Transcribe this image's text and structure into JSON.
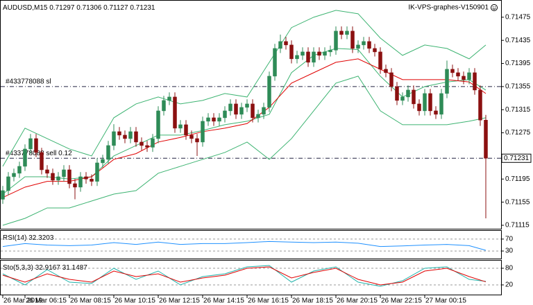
{
  "chart_data": [
    {
      "type": "candlestick",
      "title": "AUDUSD,M15",
      "watermark": "IK-VPS-graphes-V150901",
      "up_color": "#2e8b57",
      "down_color": "#8b1010",
      "ylim": [
        0.71109,
        0.715
      ],
      "yticks": [
        0.71475,
        0.71435,
        0.71395,
        0.71355,
        0.71315,
        0.71275,
        0.71195,
        0.71155,
        0.71115
      ],
      "xticks": [
        {
          "value": 0,
          "label": "26 Mar 2019"
        },
        {
          "value": 4,
          "label": "26 Mar 06:15"
        },
        {
          "value": 12,
          "label": "26 Mar 08:15"
        },
        {
          "value": 20,
          "label": "26 Mar 10:15"
        },
        {
          "value": 28,
          "label": "26 Mar 12:15"
        },
        {
          "value": 36,
          "label": "26 Mar 14:15"
        },
        {
          "value": 44,
          "label": "26 Mar 16:15"
        },
        {
          "value": 52,
          "label": "26 Mar 18:15"
        },
        {
          "value": 60,
          "label": "26 Mar 20:15"
        },
        {
          "value": 68,
          "label": "26 Mar 22:15"
        },
        {
          "value": 76,
          "label": "27 Mar 00:15"
        }
      ],
      "ohlc": [
        [
          0.7116,
          0.71183,
          0.71152,
          0.71175
        ],
        [
          0.71175,
          0.71207,
          0.71167,
          0.71199
        ],
        [
          0.71199,
          0.71213,
          0.71191,
          0.71205
        ],
        [
          0.71205,
          0.71225,
          0.71197,
          0.71217
        ],
        [
          0.71217,
          0.71255,
          0.71209,
          0.71247
        ],
        [
          0.71247,
          0.71273,
          0.71239,
          0.71265
        ],
        [
          0.71265,
          0.71273,
          0.71233,
          0.71241
        ],
        [
          0.71241,
          0.71249,
          0.71203,
          0.71211
        ],
        [
          0.71211,
          0.71219,
          0.71197,
          0.71205
        ],
        [
          0.71205,
          0.71213,
          0.71185,
          0.71193
        ],
        [
          0.71193,
          0.71207,
          0.71185,
          0.71199
        ],
        [
          0.71199,
          0.71219,
          0.71191,
          0.71211
        ],
        [
          0.71211,
          0.71219,
          0.71179,
          0.71187
        ],
        [
          0.71187,
          0.71195,
          0.7116,
          0.71181
        ],
        [
          0.71181,
          0.71207,
          0.71173,
          0.71199
        ],
        [
          0.71199,
          0.71207,
          0.71187,
          0.71195
        ],
        [
          0.71195,
          0.71203,
          0.71183,
          0.71191
        ],
        [
          0.71191,
          0.71231,
          0.71183,
          0.71223
        ],
        [
          0.71223,
          0.71237,
          0.71215,
          0.71229
        ],
        [
          0.71229,
          0.71261,
          0.71221,
          0.71253
        ],
        [
          0.71253,
          0.7129,
          0.71245,
          0.71277
        ],
        [
          0.71277,
          0.71285,
          0.71263,
          0.71271
        ],
        [
          0.71271,
          0.71279,
          0.71257,
          0.71265
        ],
        [
          0.71265,
          0.71285,
          0.71257,
          0.71277
        ],
        [
          0.71277,
          0.71285,
          0.71251,
          0.71259
        ],
        [
          0.71259,
          0.71267,
          0.71245,
          0.71253
        ],
        [
          0.71253,
          0.71261,
          0.71242,
          0.7125
        ],
        [
          0.7125,
          0.71273,
          0.71242,
          0.71265
        ],
        [
          0.71265,
          0.71321,
          0.71257,
          0.71313
        ],
        [
          0.71313,
          0.71339,
          0.71305,
          0.71331
        ],
        [
          0.71331,
          0.71345,
          0.71323,
          0.71337
        ],
        [
          0.71337,
          0.71345,
          0.71275,
          0.71283
        ],
        [
          0.71283,
          0.71297,
          0.71275,
          0.71289
        ],
        [
          0.71289,
          0.71297,
          0.71263,
          0.71271
        ],
        [
          0.71271,
          0.71279,
          0.71257,
          0.71265
        ],
        [
          0.71265,
          0.71273,
          0.71235,
          0.71259
        ],
        [
          0.71259,
          0.71303,
          0.71251,
          0.71295
        ],
        [
          0.71295,
          0.71309,
          0.71287,
          0.71301
        ],
        [
          0.71301,
          0.71309,
          0.71287,
          0.71295
        ],
        [
          0.71295,
          0.71309,
          0.71287,
          0.71301
        ],
        [
          0.71301,
          0.71321,
          0.71293,
          0.71313
        ],
        [
          0.71313,
          0.71333,
          0.71305,
          0.71325
        ],
        [
          0.71325,
          0.71333,
          0.71299,
          0.71307
        ],
        [
          0.71307,
          0.71327,
          0.71299,
          0.71319
        ],
        [
          0.71319,
          0.71333,
          0.71311,
          0.71325
        ],
        [
          0.71325,
          0.71333,
          0.71293,
          0.71301
        ],
        [
          0.71301,
          0.71315,
          0.71293,
          0.71307
        ],
        [
          0.71307,
          0.71327,
          0.71299,
          0.71319
        ],
        [
          0.71319,
          0.71381,
          0.71311,
          0.71373
        ],
        [
          0.71373,
          0.71429,
          0.71365,
          0.71421
        ],
        [
          0.71421,
          0.71445,
          0.71413,
          0.71433
        ],
        [
          0.71433,
          0.71441,
          0.71419,
          0.71427
        ],
        [
          0.71427,
          0.71435,
          0.71395,
          0.71403
        ],
        [
          0.71403,
          0.71417,
          0.71395,
          0.71409
        ],
        [
          0.71409,
          0.71423,
          0.71401,
          0.71415
        ],
        [
          0.71415,
          0.71423,
          0.71389,
          0.71397
        ],
        [
          0.71397,
          0.71423,
          0.71389,
          0.71415
        ],
        [
          0.71415,
          0.71423,
          0.71401,
          0.71409
        ],
        [
          0.71409,
          0.71423,
          0.71401,
          0.71415
        ],
        [
          0.71415,
          0.71426,
          0.71407,
          0.71418
        ],
        [
          0.71418,
          0.71459,
          0.7141,
          0.71451
        ],
        [
          0.71451,
          0.71459,
          0.71437,
          0.71445
        ],
        [
          0.71445,
          0.71459,
          0.71437,
          0.71451
        ],
        [
          0.71451,
          0.71459,
          0.71413,
          0.71421
        ],
        [
          0.71421,
          0.71435,
          0.71413,
          0.71427
        ],
        [
          0.71427,
          0.71441,
          0.71419,
          0.71433
        ],
        [
          0.71433,
          0.71441,
          0.71413,
          0.71421
        ],
        [
          0.71421,
          0.71429,
          0.71407,
          0.71415
        ],
        [
          0.71415,
          0.71423,
          0.71377,
          0.71385
        ],
        [
          0.71385,
          0.71393,
          0.71371,
          0.71379
        ],
        [
          0.71379,
          0.71387,
          0.71347,
          0.71355
        ],
        [
          0.71355,
          0.71363,
          0.71323,
          0.71331
        ],
        [
          0.71331,
          0.71345,
          0.71323,
          0.71337
        ],
        [
          0.71337,
          0.71357,
          0.71329,
          0.71349
        ],
        [
          0.71349,
          0.71357,
          0.71317,
          0.71325
        ],
        [
          0.71325,
          0.71333,
          0.71305,
          0.71313
        ],
        [
          0.71313,
          0.71351,
          0.71305,
          0.71343
        ],
        [
          0.71343,
          0.71351,
          0.71305,
          0.71313
        ],
        [
          0.71313,
          0.71321,
          0.71299,
          0.71307
        ],
        [
          0.71307,
          0.71351,
          0.71299,
          0.71343
        ],
        [
          0.71343,
          0.714,
          0.71335,
          0.71385
        ],
        [
          0.71385,
          0.71393,
          0.71371,
          0.71379
        ],
        [
          0.71379,
          0.71387,
          0.71365,
          0.71373
        ],
        [
          0.71373,
          0.71381,
          0.71359,
          0.71367
        ],
        [
          0.71367,
          0.71387,
          0.71359,
          0.71379
        ],
        [
          0.71379,
          0.71387,
          0.71341,
          0.71349
        ],
        [
          0.71349,
          0.71357,
          0.71287,
          0.71297
        ],
        [
          0.71297,
          0.71306,
          0.71127,
          0.71231
        ]
      ],
      "line_x": [
        0,
        4,
        8,
        12,
        16,
        20,
        24,
        28,
        32,
        36,
        40,
        44,
        48,
        52,
        56,
        60,
        64,
        68,
        72,
        76,
        80,
        84,
        87
      ],
      "lines": [
        {
          "color": "#3cb371",
          "values": [
            0.71217,
            0.71283,
            0.71265,
            0.71247,
            0.71235,
            0.71301,
            0.71325,
            0.71337,
            0.71325,
            0.71331,
            0.71343,
            0.71337,
            0.71397,
            0.71457,
            0.71475,
            0.71487,
            0.71481,
            0.71439,
            0.71409,
            0.71427,
            0.71421,
            0.71403,
            0.71427
          ]
        },
        {
          "color": "#3cb371",
          "values": [
            0.71169,
            0.71199,
            0.71199,
            0.71195,
            0.71199,
            0.71235,
            0.71253,
            0.71271,
            0.71271,
            0.71279,
            0.71289,
            0.71295,
            0.71307,
            0.71379,
            0.71409,
            0.71421,
            0.71419,
            0.71373,
            0.71337,
            0.71355,
            0.71363,
            0.71367,
            0.71349
          ]
        },
        {
          "color": "#3cb371",
          "values": [
            0.71115,
            0.71127,
            0.71145,
            0.71145,
            0.71157,
            0.71169,
            0.71175,
            0.71205,
            0.71217,
            0.71229,
            0.71241,
            0.71259,
            0.71229,
            0.71265,
            0.71313,
            0.71361,
            0.71373,
            0.71313,
            0.71289,
            0.71289,
            0.71289,
            0.71295,
            0.71301
          ]
        },
        {
          "color": "#e00000",
          "values": [
            0.71163,
            0.71181,
            0.71191,
            0.71191,
            0.71199,
            0.71229,
            0.71239,
            0.71259,
            0.71267,
            0.71277,
            0.71283,
            0.71291,
            0.71319,
            0.71361,
            0.71379,
            0.71397,
            0.71403,
            0.71385,
            0.71367,
            0.71367,
            0.71367,
            0.71363,
            0.71343
          ]
        }
      ],
      "orders": [
        {
          "label": "#433778088 sl",
          "value": 0.71355
        },
        {
          "label": "#433778088 sell 0.12",
          "value": 0.71231
        }
      ]
    },
    {
      "type": "line",
      "title": "RSI(14)",
      "ylim": [
        0,
        100
      ],
      "yticks": [
        70,
        30
      ],
      "line_x": [
        0,
        4,
        8,
        12,
        16,
        20,
        24,
        28,
        32,
        36,
        40,
        44,
        48,
        52,
        56,
        60,
        64,
        68,
        72,
        76,
        80,
        84,
        87
      ],
      "series": [
        {
          "color": "#1e90ff",
          "values": [
            45,
            55,
            50,
            48,
            50,
            58,
            52,
            60,
            52,
            55,
            55,
            58,
            62,
            60,
            58,
            60,
            56,
            45,
            47,
            50,
            52,
            48,
            32.3203
          ]
        }
      ]
    },
    {
      "type": "line",
      "title": "Sto(5,3,3)",
      "ylim": [
        0,
        100
      ],
      "yticks": [
        80,
        20
      ],
      "line_x": [
        0,
        4,
        8,
        12,
        16,
        20,
        24,
        28,
        32,
        36,
        40,
        44,
        48,
        52,
        56,
        60,
        64,
        68,
        72,
        76,
        80,
        84,
        87
      ],
      "series": [
        {
          "color": "#20b2aa",
          "values": [
            60,
            20,
            75,
            30,
            25,
            80,
            40,
            70,
            20,
            50,
            60,
            85,
            90,
            30,
            70,
            85,
            30,
            15,
            35,
            80,
            85,
            40,
            32.9167
          ]
        },
        {
          "color": "#e00000",
          "values": [
            55,
            30,
            60,
            40,
            30,
            70,
            50,
            60,
            30,
            45,
            55,
            80,
            85,
            45,
            65,
            80,
            40,
            20,
            30,
            70,
            80,
            50,
            31.1487
          ]
        }
      ]
    }
  ]
}
